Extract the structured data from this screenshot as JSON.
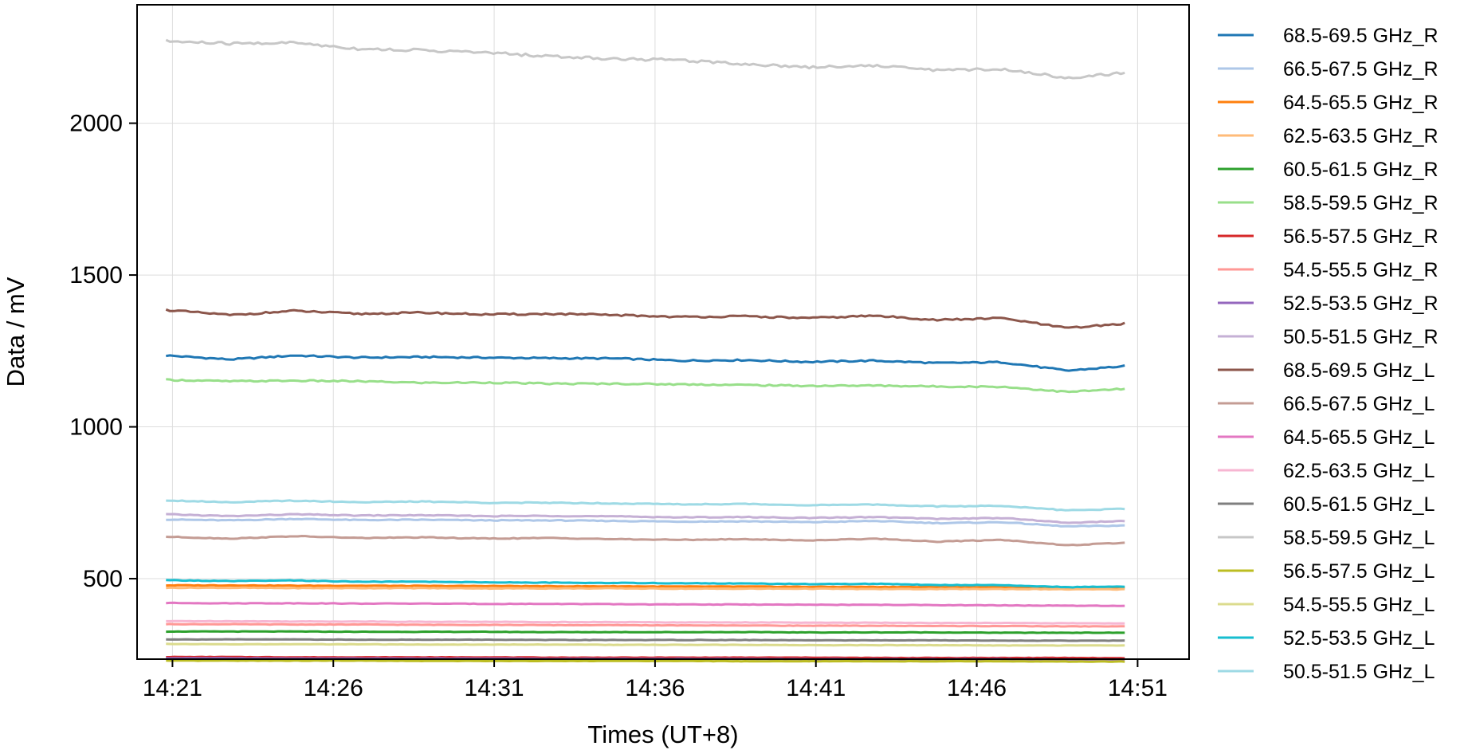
{
  "chart_data": {
    "type": "line",
    "xlabel": "Times (UT+8)",
    "ylabel": "Data / mV",
    "x_ticks": [
      "14:21",
      "14:26",
      "14:31",
      "14:36",
      "14:41",
      "14:46",
      "14:51"
    ],
    "x_range_minutes": [
      -1.1,
      31.6
    ],
    "x_data_range_minutes": [
      0,
      29.8
    ],
    "ylim": [
      235,
      2390
    ],
    "y_ticks": [
      500,
      1000,
      1500,
      2000
    ],
    "grid": true,
    "legend": "outside right",
    "x": [
      "14:20:48",
      "14:22:48",
      "14:24:48",
      "14:26:48",
      "14:28:48",
      "14:30:48",
      "14:32:48",
      "14:34:48",
      "14:36:48",
      "14:38:48",
      "14:40:48",
      "14:42:48",
      "14:44:48",
      "14:46:48",
      "14:48:48",
      "14:50:36"
    ],
    "series": [
      {
        "name": "68.5-69.5 GHz_R",
        "color": "#1f77b4",
        "values": [
          1235,
          1222,
          1235,
          1228,
          1230,
          1228,
          1226,
          1225,
          1218,
          1220,
          1214,
          1218,
          1210,
          1213,
          1185,
          1200
        ]
      },
      {
        "name": "66.5-67.5 GHz_R",
        "color": "#aec7e8",
        "values": [
          695,
          692,
          697,
          693,
          694,
          692,
          692,
          690,
          688,
          689,
          686,
          690,
          683,
          686,
          672,
          675
        ]
      },
      {
        "name": "64.5-65.5 GHz_R",
        "color": "#ff7f0e",
        "values": [
          478,
          478,
          477,
          477,
          476,
          476,
          475,
          475,
          474,
          474,
          473,
          473,
          472,
          472,
          470,
          470
        ]
      },
      {
        "name": "62.5-63.5 GHz_R",
        "color": "#ffbb78",
        "values": [
          470,
          470,
          469,
          469,
          469,
          468,
          468,
          468,
          467,
          467,
          467,
          466,
          466,
          466,
          465,
          465
        ]
      },
      {
        "name": "60.5-61.5 GHz_R",
        "color": "#2ca02c",
        "values": [
          326,
          326,
          326,
          325,
          325,
          325,
          324,
          324,
          324,
          324,
          323,
          323,
          323,
          322,
          322,
          322
        ]
      },
      {
        "name": "58.5-59.5 GHz_R",
        "color": "#98df8a",
        "values": [
          1155,
          1150,
          1152,
          1150,
          1145,
          1146,
          1142,
          1142,
          1140,
          1138,
          1135,
          1136,
          1133,
          1132,
          1115,
          1125
        ]
      },
      {
        "name": "56.5-57.5 GHz_R",
        "color": "#d62728",
        "values": [
          242,
          242,
          241,
          241,
          241,
          241,
          240,
          240,
          240,
          240,
          240,
          239,
          239,
          239,
          239,
          238
        ]
      },
      {
        "name": "54.5-55.5 GHz_R",
        "color": "#ff9896",
        "values": [
          350,
          350,
          349,
          349,
          348,
          348,
          347,
          347,
          346,
          346,
          345,
          345,
          344,
          344,
          343,
          343
        ]
      },
      {
        "name": "52.5-53.5 GHz_R",
        "color": "#9467bd",
        "values": [
          238,
          238,
          237,
          237,
          237,
          237,
          236,
          236,
          236,
          236,
          235,
          235,
          235,
          235,
          234,
          234
        ]
      },
      {
        "name": "50.5-51.5 GHz_R",
        "color": "#c5b0d5",
        "values": [
          712,
          706,
          712,
          708,
          709,
          706,
          707,
          705,
          702,
          703,
          700,
          703,
          697,
          700,
          684,
          690
        ]
      },
      {
        "name": "68.5-69.5 GHz_L",
        "color": "#8c564b",
        "values": [
          1385,
          1368,
          1382,
          1372,
          1376,
          1370,
          1372,
          1368,
          1362,
          1364,
          1358,
          1366,
          1352,
          1358,
          1325,
          1340
        ]
      },
      {
        "name": "66.5-67.5 GHz_L",
        "color": "#c49c94",
        "values": [
          638,
          632,
          640,
          634,
          636,
          632,
          634,
          630,
          628,
          630,
          626,
          632,
          622,
          628,
          610,
          618
        ]
      },
      {
        "name": "64.5-65.5 GHz_L",
        "color": "#e377c2",
        "values": [
          420,
          419,
          419,
          418,
          418,
          417,
          417,
          416,
          415,
          415,
          414,
          414,
          413,
          412,
          411,
          410
        ]
      },
      {
        "name": "62.5-63.5 GHz_L",
        "color": "#f7b6d2",
        "values": [
          360,
          360,
          359,
          359,
          358,
          358,
          357,
          357,
          356,
          356,
          355,
          355,
          354,
          354,
          353,
          353
        ]
      },
      {
        "name": "60.5-61.5 GHz_L",
        "color": "#7f7f7f",
        "values": [
          300,
          300,
          300,
          299,
          299,
          299,
          298,
          298,
          298,
          298,
          297,
          297,
          297,
          296,
          296,
          296
        ]
      },
      {
        "name": "58.5-59.5 GHz_L",
        "color": "#c7c7c7",
        "values": [
          2270,
          2262,
          2265,
          2245,
          2240,
          2232,
          2220,
          2212,
          2208,
          2195,
          2185,
          2190,
          2175,
          2178,
          2150,
          2165
        ]
      },
      {
        "name": "56.5-57.5 GHz_L",
        "color": "#bcbd22",
        "values": [
          230,
          230,
          230,
          230,
          229,
          229,
          229,
          229,
          229,
          228,
          228,
          228,
          228,
          228,
          227,
          227
        ]
      },
      {
        "name": "54.5-55.5 GHz_L",
        "color": "#dbdb8d",
        "values": [
          285,
          284,
          284,
          284,
          283,
          283,
          283,
          282,
          282,
          282,
          281,
          281,
          281,
          280,
          280,
          280
        ]
      },
      {
        "name": "52.5-53.5 GHz_L",
        "color": "#17becf",
        "values": [
          495,
          492,
          494,
          490,
          490,
          488,
          487,
          486,
          485,
          484,
          482,
          483,
          479,
          479,
          472,
          474
        ]
      },
      {
        "name": "50.5-51.5 GHz_L",
        "color": "#9edae5",
        "values": [
          758,
          752,
          757,
          752,
          754,
          750,
          750,
          748,
          745,
          746,
          742,
          744,
          738,
          740,
          725,
          730
        ]
      }
    ]
  }
}
